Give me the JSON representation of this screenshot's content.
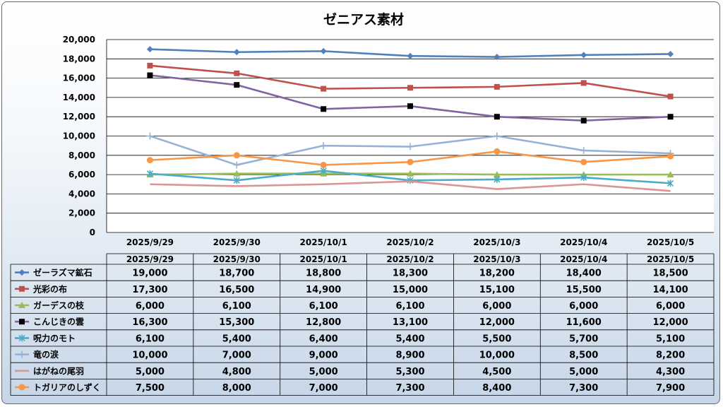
{
  "chart_data": {
    "type": "line",
    "title": "ゼニアス素材",
    "categories": [
      "2025/9/29",
      "2025/9/30",
      "2025/10/1",
      "2025/10/2",
      "2025/10/3",
      "2025/10/4",
      "2025/10/5"
    ],
    "ylim": [
      0,
      20000
    ],
    "yticks": [
      "0",
      "2,000",
      "4,000",
      "6,000",
      "8,000",
      "10,000",
      "12,000",
      "14,000",
      "16,000",
      "18,000",
      "20,000"
    ],
    "grid": true,
    "legend_placement": "data-table",
    "series": [
      {
        "name": "ゼーラズマ鉱石",
        "color": "#4f81bd",
        "marker": "diamond",
        "values": [
          19000,
          18700,
          18800,
          18300,
          18200,
          18400,
          18500
        ],
        "labels": [
          "19,000",
          "18,700",
          "18,800",
          "18,300",
          "18,200",
          "18,400",
          "18,500"
        ]
      },
      {
        "name": "光彩の布",
        "color": "#c0504d",
        "marker": "square",
        "values": [
          17300,
          16500,
          14900,
          15000,
          15100,
          15500,
          14100
        ],
        "labels": [
          "17,300",
          "16,500",
          "14,900",
          "15,000",
          "15,100",
          "15,500",
          "14,100"
        ]
      },
      {
        "name": "ガーデスの枝",
        "color": "#9bbb59",
        "marker": "triangle",
        "values": [
          6000,
          6100,
          6100,
          6100,
          6000,
          6000,
          6000
        ],
        "labels": [
          "6,000",
          "6,100",
          "6,100",
          "6,100",
          "6,000",
          "6,000",
          "6,000"
        ]
      },
      {
        "name": "こんじきの雲",
        "color": "#8064a2",
        "marker": "blacksquare",
        "values": [
          16300,
          15300,
          12800,
          13100,
          12000,
          11600,
          12000
        ],
        "labels": [
          "16,300",
          "15,300",
          "12,800",
          "13,100",
          "12,000",
          "11,600",
          "12,000"
        ]
      },
      {
        "name": "呪力のモト",
        "color": "#4bacc6",
        "marker": "star",
        "values": [
          6100,
          5400,
          6400,
          5400,
          5500,
          5700,
          5100
        ],
        "labels": [
          "6,100",
          "5,400",
          "6,400",
          "5,400",
          "5,500",
          "5,700",
          "5,100"
        ]
      },
      {
        "name": "竜の涙",
        "color": "#95b3d7",
        "marker": "plus",
        "values": [
          10000,
          7000,
          9000,
          8900,
          10000,
          8500,
          8200
        ],
        "labels": [
          "10,000",
          "7,000",
          "9,000",
          "8,900",
          "10,000",
          "8,500",
          "8,200"
        ]
      },
      {
        "name": "はがねの尾羽",
        "color": "#d99694",
        "marker": "none",
        "values": [
          5000,
          4800,
          5000,
          5300,
          4500,
          5000,
          4300
        ],
        "labels": [
          "5,000",
          "4,800",
          "5,000",
          "5,300",
          "4,500",
          "5,000",
          "4,300"
        ]
      },
      {
        "name": "トガリアのしずく",
        "color": "#f79646",
        "marker": "circle",
        "values": [
          7500,
          8000,
          7000,
          7300,
          8400,
          7300,
          7900
        ],
        "labels": [
          "7,500",
          "8,000",
          "7,000",
          "7,300",
          "8,400",
          "7,300",
          "7,900"
        ]
      }
    ]
  }
}
